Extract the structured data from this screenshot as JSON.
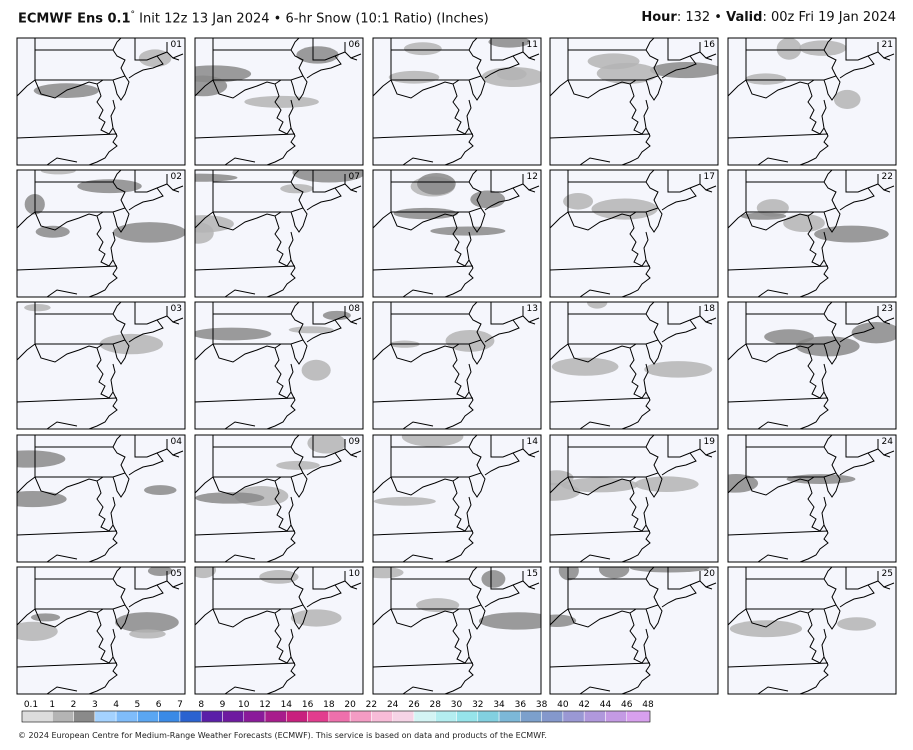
{
  "header": {
    "title": "ECMWF Ens 0.1",
    "degree": "°",
    "subtitle": "Init 12z 13 Jan 2024 • 6-hr Snow (10:1 Ratio) (Inches)",
    "hour_label": "Hour",
    "hour": ": 132 •",
    "valid_label": "Valid",
    "valid": ": 00z Fri 19 Jan 2024"
  },
  "panels": [
    "01",
    "06",
    "11",
    "16",
    "21",
    "02",
    "07",
    "12",
    "17",
    "22",
    "03",
    "08",
    "13",
    "18",
    "23",
    "04",
    "09",
    "14",
    "19",
    "24",
    "05",
    "10",
    "15",
    "20",
    "25"
  ],
  "colorbar": {
    "labels": [
      "0.1",
      "1",
      "2",
      "3",
      "4",
      "5",
      "6",
      "7",
      "8",
      "9",
      "10",
      "12",
      "14",
      "16",
      "18",
      "20",
      "22",
      "24",
      "26",
      "28",
      "30",
      "32",
      "34",
      "36",
      "38",
      "40",
      "42",
      "44",
      "46",
      "48"
    ],
    "colors": [
      "#dcdcdc",
      "#b4b4b4",
      "#8a8a8a",
      "#a4d2ff",
      "#7fbcfa",
      "#5aa6f2",
      "#3a8ae6",
      "#2a62d0",
      "#5a1fa8",
      "#6e1aa0",
      "#8a1a9a",
      "#a81c8c",
      "#c8207e",
      "#e23c8e",
      "#ee70ac",
      "#f49cc4",
      "#f8bcd8",
      "#f6d4e6",
      "#d4f4f4",
      "#b4eef0",
      "#96e4ea",
      "#82d0e0",
      "#7cb8d8",
      "#7ca0cc",
      "#8498cc",
      "#9a98d4",
      "#b098dc",
      "#c49ae4",
      "#d8a0ee"
    ]
  },
  "footer": "© 2024 European Centre for Medium-Range Weather Forecasts (ECMWF). This service is based on data and products of the ECMWF."
}
